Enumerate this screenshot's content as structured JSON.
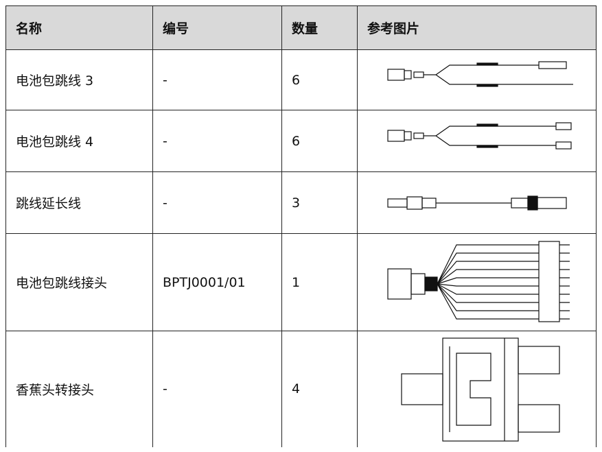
{
  "table": {
    "header": [
      "名称",
      "编号",
      "数量",
      "参考图片"
    ],
    "rows": [
      [
        "电池包跳线 3",
        "-",
        "6"
      ],
      [
        "电池包跳线 4",
        "-",
        "6"
      ],
      [
        "跳线延长线",
        "-",
        "3"
      ],
      [
        "电池包跳线接头",
        "BPTJ0001/01",
        "1"
      ],
      [
        "香蕉头转接头",
        "-",
        "4"
      ]
    ]
  }
}
